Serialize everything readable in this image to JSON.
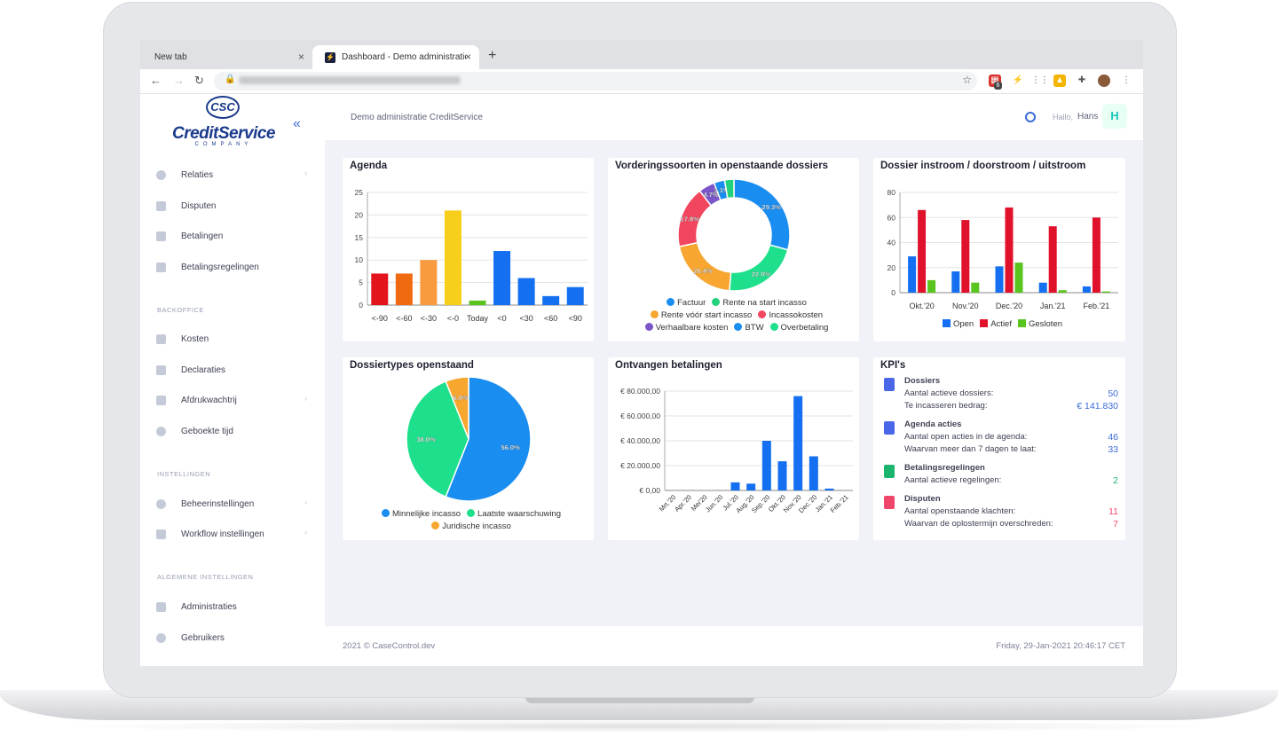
{
  "browser": {
    "tabs": [
      {
        "title": "New tab"
      },
      {
        "title": "Dashboard - Demo administratie CreditService"
      }
    ],
    "new_tab_label": "+",
    "close_label": "×",
    "extension_badge": "6"
  },
  "app": {
    "logo": {
      "circle": "CSC",
      "word": "CreditService",
      "sub": "COMPANY"
    },
    "crumb": "Demo administratie CreditService",
    "greeting": "Hallo,",
    "user": "Hans",
    "avatar_initial": "H",
    "footer_copy": "2021 © CaseControl.dev",
    "footer_date": "Friday, 29-Jan-2021 20:46:17 CET"
  },
  "sidebar": {
    "items": [
      {
        "label": "Relaties",
        "chevron": true
      },
      {
        "label": "Disputen",
        "chevron": false
      },
      {
        "label": "Betalingen",
        "chevron": false
      },
      {
        "label": "Betalingsregelingen",
        "chevron": false
      }
    ],
    "sections": [
      {
        "label": "BACKOFFICE",
        "items": [
          {
            "label": "Kosten"
          },
          {
            "label": "Declaraties"
          },
          {
            "label": "Afdrukwachtrij"
          },
          {
            "label": "Geboekte tijd"
          }
        ]
      },
      {
        "label": "INSTELLINGEN",
        "items": [
          {
            "label": "Beheerinstellingen"
          },
          {
            "label": "Workflow instellingen"
          }
        ]
      },
      {
        "label": "ALGEMENE INSTELLINGEN",
        "items": [
          {
            "label": "Administraties"
          },
          {
            "label": "Gebruikers"
          }
        ]
      }
    ]
  },
  "chart_data": [
    {
      "type": "bar",
      "title": "Agenda",
      "categories": [
        "<-90",
        "<-60",
        "<-30",
        "<-0",
        "Today",
        "<0",
        "<30",
        "<60",
        "<90"
      ],
      "values": [
        7,
        7,
        10,
        21,
        1,
        12,
        6,
        2,
        4
      ],
      "colors": [
        "#e3141c",
        "#f06a10",
        "#f79b3e",
        "#f7cf1a",
        "#5ac41e",
        "#1470f0",
        "#1470f0",
        "#1470f0",
        "#1470f0"
      ],
      "ylim": [
        0,
        25
      ],
      "yticks": [
        0,
        5,
        10,
        15,
        20,
        25
      ]
    },
    {
      "type": "pie",
      "title": "Vorderingssoorten in openstaande dossiers",
      "donut": true,
      "slices": [
        {
          "label": "Factuur",
          "value": 29.3,
          "color": "#1a8df0",
          "text": "29.3%"
        },
        {
          "label": "Overbetaling",
          "value": 22.0,
          "color": "#1ee08c",
          "text": "22.0%"
        },
        {
          "label": "Rente vóór start incasso",
          "value": 20.4,
          "color": "#f7a630",
          "text": "20.4%"
        },
        {
          "label": "Incassokosten",
          "value": 17.8,
          "color": "#f2455e",
          "text": "17.8%"
        },
        {
          "label": "Verhaalbare kosten",
          "value": 4.7,
          "color": "#7a56c8",
          "text": "4.7%"
        },
        {
          "label": "BTW",
          "value": 3.1,
          "color": "#1a8df0",
          "text": "3.1%"
        },
        {
          "label": "Rente na start incasso",
          "value": 2.7,
          "color": "#22d17c",
          "text": ""
        }
      ],
      "legend": [
        [
          {
            "label": "Factuur",
            "color": "#1a8df0"
          },
          {
            "label": "Rente na start incasso",
            "color": "#22d17c"
          }
        ],
        [
          {
            "label": "Rente vóór start incasso",
            "color": "#f7a630"
          },
          {
            "label": "Incassokosten",
            "color": "#f2455e"
          }
        ],
        [
          {
            "label": "Verhaalbare kosten",
            "color": "#7a56c8"
          },
          {
            "label": "BTW",
            "color": "#1a8df0"
          },
          {
            "label": "Overbetaling",
            "color": "#1ee08c"
          }
        ]
      ]
    },
    {
      "type": "bar",
      "title": "Dossier instroom / doorstroom / uitstroom",
      "categories": [
        "Okt.'20",
        "Nov.'20",
        "Dec.'20",
        "Jan.'21",
        "Feb.'21"
      ],
      "series": [
        {
          "name": "Open",
          "color": "#1470f0",
          "values": [
            29,
            17,
            21,
            8,
            5
          ]
        },
        {
          "name": "Actief",
          "color": "#e0112b",
          "values": [
            66,
            58,
            68,
            53,
            60
          ]
        },
        {
          "name": "Gesloten",
          "color": "#5ac41e",
          "values": [
            10,
            8,
            24,
            2,
            1
          ]
        }
      ],
      "ylim": [
        0,
        80
      ],
      "yticks": [
        0,
        20,
        40,
        60,
        80
      ]
    },
    {
      "type": "pie",
      "title": "Dossiertypes openstaand",
      "donut": false,
      "slices": [
        {
          "label": "Minnelijke incasso",
          "value": 56.0,
          "color": "#1a8df0",
          "text": "56.0%"
        },
        {
          "label": "Laatste waarschuwing",
          "value": 38.0,
          "color": "#1ee08c",
          "text": "38.0%"
        },
        {
          "label": "Juridische incasso",
          "value": 6.0,
          "color": "#f7a630",
          "text": "6.0%"
        }
      ],
      "legend": [
        [
          {
            "label": "Minnelijke incasso",
            "color": "#1a8df0"
          },
          {
            "label": "Laatste waarschuwing",
            "color": "#1ee08c"
          }
        ],
        [
          {
            "label": "Juridische incasso",
            "color": "#f7a630"
          }
        ]
      ]
    },
    {
      "type": "bar",
      "title": "Ontvangen betalingen",
      "categories": [
        "Mrt.'20",
        "Apr.'20",
        "Mei'20",
        "Jun.'20",
        "Jul.'20",
        "Aug.'20",
        "Sep.'20",
        "Okt.'20",
        "Nov.'20",
        "Dec.'20",
        "Jan.'21",
        "Feb.'21"
      ],
      "values": [
        0,
        0,
        0,
        0,
        6500,
        5500,
        40000,
        23500,
        76000,
        27500,
        1500,
        0
      ],
      "color": "#1470f0",
      "ylim": [
        0,
        80000
      ],
      "yticks": [
        0,
        20000,
        40000,
        60000,
        80000
      ],
      "ytick_labels": [
        "€ 0,00",
        "€ 20.000,00",
        "€ 40.000,00",
        "€ 60.000,00",
        "€ 80.000,00"
      ]
    }
  ],
  "kpi": {
    "title": "KPI's",
    "sections": [
      {
        "head": "Dossiers",
        "icon_color": "#4a67e8",
        "value_color": "#3b6bd6",
        "rows": [
          {
            "label": "Aantal actieve dossiers:",
            "value": "50"
          },
          {
            "label": "Te incasseren bedrag:",
            "value": "€ 141.830"
          }
        ]
      },
      {
        "head": "Agenda acties",
        "icon_color": "#4a67e8",
        "value_color": "#3b6bd6",
        "rows": [
          {
            "label": "Aantal open acties in de agenda:",
            "value": "46"
          },
          {
            "label": "Waarvan meer dan 7 dagen te laat:",
            "value": "33"
          }
        ]
      },
      {
        "head": "Betalingsregelingen",
        "icon_color": "#1bb56d",
        "value_color": "#1bb56d",
        "rows": [
          {
            "label": "Aantal actieve regelingen:",
            "value": "2"
          }
        ]
      },
      {
        "head": "Disputen",
        "icon_color": "#f0466b",
        "value_color": "#f0466b",
        "rows": [
          {
            "label": "Aantal openstaande klachten:",
            "value": "11"
          },
          {
            "label": "Waarvan de oplostermijn overschreden:",
            "value": "7"
          }
        ]
      }
    ]
  }
}
